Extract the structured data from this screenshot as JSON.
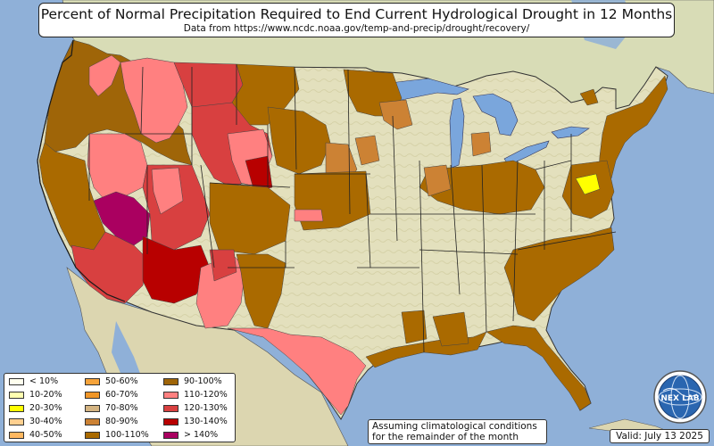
{
  "title": "Percent of Normal Precipitation Required to End Current Hydrological Drought in 12 Months",
  "subtitle": "Data from https://www.ncdc.noaa.gov/temp-and-precip/drought/recovery/",
  "legend": [
    {
      "label": "< 10%",
      "color": "#ffffee"
    },
    {
      "label": "10-20%",
      "color": "#ffffb0"
    },
    {
      "label": "20-30%",
      "color": "#ffff00"
    },
    {
      "label": "30-40%",
      "color": "#ffd090"
    },
    {
      "label": "40-50%",
      "color": "#ffb860"
    },
    {
      "label": "50-60%",
      "color": "#f6a33a"
    },
    {
      "label": "60-70%",
      "color": "#f09628"
    },
    {
      "label": "70-80%",
      "color": "#d4b482"
    },
    {
      "label": "80-90%",
      "color": "#cc8234"
    },
    {
      "label": "100-110%",
      "color": "#aa6a00"
    },
    {
      "label": "90-100%",
      "color": "#9f6508"
    },
    {
      "label": "110-120%",
      "color": "#ff8080"
    },
    {
      "label": "120-130%",
      "color": "#d84040"
    },
    {
      "label": "130-140%",
      "color": "#b80000"
    },
    {
      "label": "> 140%",
      "color": "#aa0060"
    }
  ],
  "note": {
    "line1": "Assuming climatological conditions",
    "line2": "for the remainder of the month"
  },
  "valid": "Valid: July 13 2025",
  "logo": {
    "text": "NEX LAB",
    "icon": "globe-icon"
  },
  "colors": {
    "ocean": "#8fb0d8",
    "land": "#e6e3c0",
    "lakes": "#7aa6dc",
    "coast": "#2a2a2a"
  }
}
